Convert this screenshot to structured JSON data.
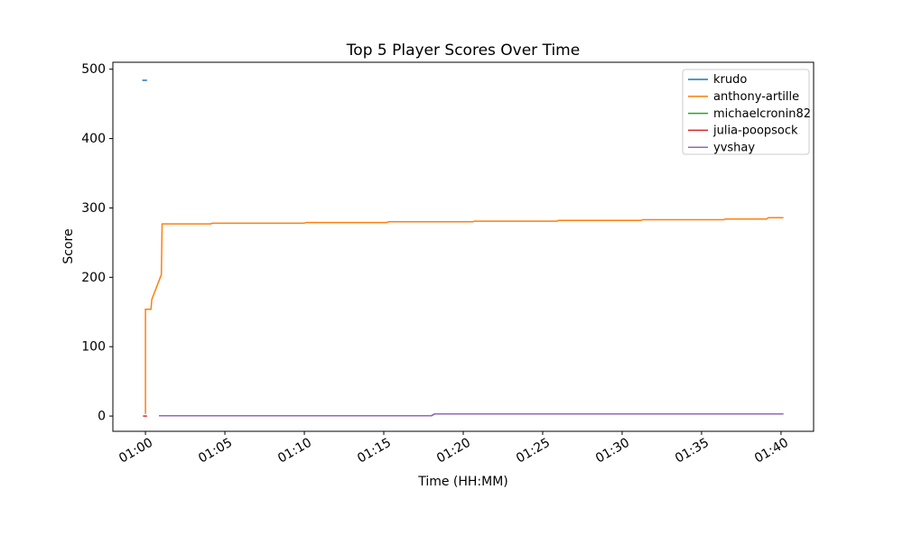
{
  "figure": {
    "background": "#ffffff",
    "spine_color": "#000000"
  },
  "chart_data": {
    "type": "line",
    "title": "Top 5 Player Scores Over Time",
    "xlabel": "Time (HH:MM)",
    "ylabel": "Score",
    "grid": false,
    "legend_position": "upper right",
    "legend_edge_color": "#cccccc",
    "x_units": "minutes after 01:00",
    "xlim_minutes": [
      -2.05,
      42.05
    ],
    "ylim": [
      -22,
      510
    ],
    "xticks": [
      {
        "minutes": 0,
        "label": "01:00"
      },
      {
        "minutes": 5,
        "label": "01:05"
      },
      {
        "minutes": 10,
        "label": "01:10"
      },
      {
        "minutes": 15,
        "label": "01:15"
      },
      {
        "minutes": 20,
        "label": "01:20"
      },
      {
        "minutes": 25,
        "label": "01:25"
      },
      {
        "minutes": 30,
        "label": "01:30"
      },
      {
        "minutes": 35,
        "label": "01:35"
      },
      {
        "minutes": 40,
        "label": "01:40"
      }
    ],
    "ytick_values": [
      0,
      100,
      200,
      300,
      400,
      500
    ],
    "series": [
      {
        "name": "krudo",
        "color": "#1f77b4",
        "points": [
          [
            -0.2,
            484
          ],
          [
            0.1,
            484
          ]
        ]
      },
      {
        "name": "anthony-artille",
        "color": "#ff7f0e",
        "points": [
          [
            0,
            3
          ],
          [
            0,
            154
          ],
          [
            0.35,
            154
          ],
          [
            0.4,
            168
          ],
          [
            1.0,
            204
          ],
          [
            1.05,
            277
          ],
          [
            4.1,
            277
          ],
          [
            4.2,
            278
          ],
          [
            10,
            278
          ],
          [
            10.1,
            279
          ],
          [
            15.2,
            279
          ],
          [
            15.3,
            280
          ],
          [
            20.6,
            280
          ],
          [
            20.7,
            281
          ],
          [
            25.9,
            281
          ],
          [
            26,
            282
          ],
          [
            31.2,
            282
          ],
          [
            31.3,
            283
          ],
          [
            36.4,
            283
          ],
          [
            36.5,
            284
          ],
          [
            39.1,
            284
          ],
          [
            39.2,
            286
          ],
          [
            40.15,
            286
          ]
        ]
      },
      {
        "name": "michaelcronin82",
        "color": "#2ca02c",
        "points": [
          [
            0.85,
            0.5
          ],
          [
            18,
            0.5
          ],
          [
            18.2,
            3
          ],
          [
            40.15,
            3
          ]
        ]
      },
      {
        "name": "julia-poopsock",
        "color": "#d62728",
        "points": [
          [
            -0.15,
            0
          ],
          [
            0.1,
            0
          ]
        ]
      },
      {
        "name": "yvshay",
        "color": "#9467bd",
        "points": [
          [
            0.85,
            0.5
          ],
          [
            18,
            0.5
          ],
          [
            18.2,
            3
          ],
          [
            40.15,
            3
          ]
        ]
      }
    ]
  }
}
